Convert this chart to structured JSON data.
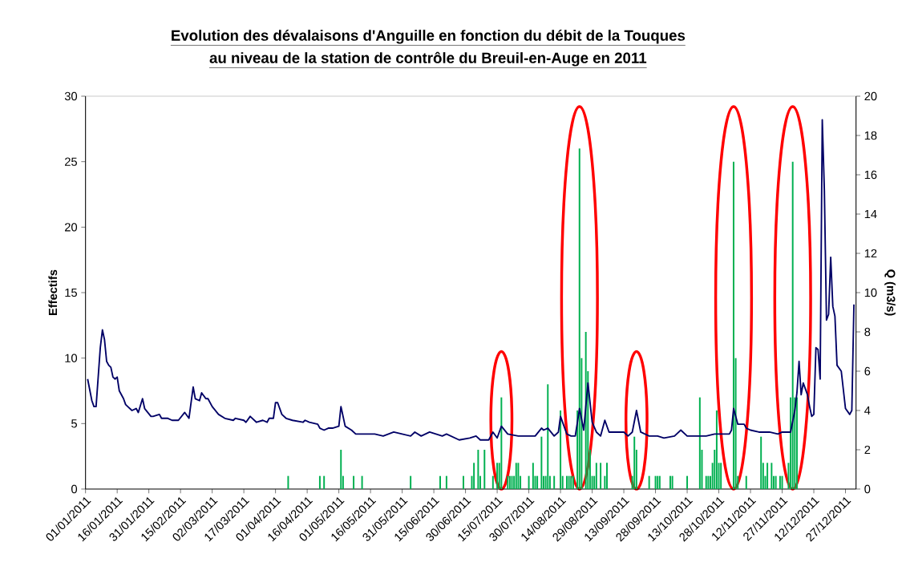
{
  "chart_data": {
    "type": "bar",
    "title": "Evolution des dévalaisons d'Anguille en fonction du débit de la Touques",
    "subtitle": "au niveau de la station de contrôle du Breuil-en-Auge en 2011",
    "ylabel": "Effectifs",
    "y2label": "Q (m3/s)",
    "xlim": [
      "2011-01-01",
      "2012-01-01"
    ],
    "xticks": [
      {
        "value": "2011-01-01",
        "label": "01/01/2011"
      },
      {
        "value": "2011-01-16",
        "label": "16/01/2011"
      },
      {
        "value": "2011-01-31",
        "label": "31/01/2011"
      },
      {
        "value": "2011-02-15",
        "label": "15/02/2011"
      },
      {
        "value": "2011-03-02",
        "label": "02/03/2011"
      },
      {
        "value": "2011-03-17",
        "label": "17/03/2011"
      },
      {
        "value": "2011-04-01",
        "label": "01/04/2011"
      },
      {
        "value": "2011-04-16",
        "label": "16/04/2011"
      },
      {
        "value": "2011-05-01",
        "label": "01/05/2011"
      },
      {
        "value": "2011-05-16",
        "label": "16/05/2011"
      },
      {
        "value": "2011-05-31",
        "label": "31/05/2011"
      },
      {
        "value": "2011-06-15",
        "label": "15/06/2011"
      },
      {
        "value": "2011-06-30",
        "label": "30/06/2011"
      },
      {
        "value": "2011-07-15",
        "label": "15/07/2011"
      },
      {
        "value": "2011-07-30",
        "label": "30/07/2011"
      },
      {
        "value": "2011-08-14",
        "label": "14/08/2011"
      },
      {
        "value": "2011-08-29",
        "label": "29/08/2011"
      },
      {
        "value": "2011-09-13",
        "label": "13/09/2011"
      },
      {
        "value": "2011-09-28",
        "label": "28/09/2011"
      },
      {
        "value": "2011-10-13",
        "label": "13/10/2011"
      },
      {
        "value": "2011-10-28",
        "label": "28/10/2011"
      },
      {
        "value": "2011-11-12",
        "label": "12/11/2011"
      },
      {
        "value": "2011-11-27",
        "label": "27/11/2011"
      },
      {
        "value": "2011-12-12",
        "label": "12/12/2011"
      },
      {
        "value": "2011-12-27",
        "label": "27/12/2011"
      }
    ],
    "ylim": [
      0,
      30
    ],
    "yticks": [
      0,
      5,
      10,
      15,
      20,
      25,
      30
    ],
    "y2lim": [
      0,
      20
    ],
    "y2ticks": [
      0,
      2,
      4,
      6,
      8,
      10,
      12,
      14,
      16,
      18,
      20
    ],
    "series": [
      {
        "color": "#00b050",
        "x": [
          "2011-04-07",
          "2011-04-22",
          "2011-04-24",
          "2011-05-02",
          "2011-05-03",
          "2011-05-08",
          "2011-05-12",
          "2011-06-04",
          "2011-06-18",
          "2011-06-21",
          "2011-06-29",
          "2011-07-03",
          "2011-07-04",
          "2011-07-06",
          "2011-07-07",
          "2011-07-09",
          "2011-07-13",
          "2011-07-15",
          "2011-07-16",
          "2011-07-17",
          "2011-07-20",
          "2011-07-21",
          "2011-07-22",
          "2011-07-23",
          "2011-07-24",
          "2011-07-25",
          "2011-07-26",
          "2011-07-30",
          "2011-08-01",
          "2011-08-02",
          "2011-08-03",
          "2011-08-05",
          "2011-08-06",
          "2011-08-07",
          "2011-08-08",
          "2011-08-09",
          "2011-08-11",
          "2011-08-14",
          "2011-08-15",
          "2011-08-17",
          "2011-08-18",
          "2011-08-19",
          "2011-08-20",
          "2011-08-22",
          "2011-08-23",
          "2011-08-24",
          "2011-08-26",
          "2011-08-27",
          "2011-08-28",
          "2011-08-29",
          "2011-08-30",
          "2011-08-31",
          "2011-09-02",
          "2011-09-04",
          "2011-09-05",
          "2011-09-17",
          "2011-09-18",
          "2011-09-19",
          "2011-09-25",
          "2011-09-28",
          "2011-09-29",
          "2011-09-30",
          "2011-10-05",
          "2011-10-06",
          "2011-10-13",
          "2011-10-19",
          "2011-10-20",
          "2011-10-22",
          "2011-10-23",
          "2011-10-24",
          "2011-10-25",
          "2011-10-26",
          "2011-10-27",
          "2011-10-28",
          "2011-10-29",
          "2011-11-04",
          "2011-11-05",
          "2011-11-06",
          "2011-11-10",
          "2011-11-17",
          "2011-11-18",
          "2011-11-19",
          "2011-11-20",
          "2011-11-22",
          "2011-11-23",
          "2011-11-24",
          "2011-11-26",
          "2011-11-27",
          "2011-11-30",
          "2011-12-01",
          "2011-12-02",
          "2011-12-03",
          "2011-12-04"
        ],
        "values": [
          1,
          1,
          1,
          3,
          1,
          1,
          1,
          1,
          1,
          1,
          1,
          1,
          2,
          3,
          1,
          3,
          1,
          2,
          2,
          7,
          1,
          1,
          1,
          1,
          2,
          2,
          1,
          1,
          2,
          1,
          1,
          4,
          1,
          1,
          8,
          1,
          1,
          6,
          1,
          1,
          1,
          1,
          1,
          6,
          26,
          10,
          12,
          9,
          3,
          1,
          1,
          2,
          2,
          1,
          2,
          1,
          4,
          3,
          1,
          1,
          1,
          1,
          1,
          1,
          1,
          7,
          3,
          1,
          1,
          1,
          2,
          3,
          6,
          2,
          2,
          25,
          10,
          1,
          1,
          4,
          2,
          1,
          2,
          2,
          1,
          1,
          1,
          1,
          2,
          7,
          25,
          7,
          7
        ]
      },
      {
        "type": "line",
        "axis": "y2",
        "color": "#000066",
        "x": [
          "2011-01-02",
          "2011-01-04",
          "2011-01-05",
          "2011-01-06",
          "2011-01-08",
          "2011-01-09",
          "2011-01-10",
          "2011-01-11",
          "2011-01-12",
          "2011-01-13",
          "2011-01-14",
          "2011-01-15",
          "2011-01-16",
          "2011-01-17",
          "2011-01-19",
          "2011-01-20",
          "2011-01-21",
          "2011-01-23",
          "2011-01-25",
          "2011-01-26",
          "2011-01-28",
          "2011-01-29",
          "2011-02-01",
          "2011-02-02",
          "2011-02-05",
          "2011-02-06",
          "2011-02-09",
          "2011-02-11",
          "2011-02-14",
          "2011-02-17",
          "2011-02-19",
          "2011-02-21",
          "2011-02-22",
          "2011-02-24",
          "2011-02-25",
          "2011-02-27",
          "2011-02-28",
          "2011-03-02",
          "2011-03-05",
          "2011-03-08",
          "2011-03-12",
          "2011-03-13",
          "2011-03-17",
          "2011-03-18",
          "2011-03-20",
          "2011-03-23",
          "2011-03-26",
          "2011-03-28",
          "2011-03-29",
          "2011-03-31",
          "2011-04-01",
          "2011-04-02",
          "2011-04-04",
          "2011-04-06",
          "2011-04-09",
          "2011-04-14",
          "2011-04-15",
          "2011-04-17",
          "2011-04-21",
          "2011-04-22",
          "2011-04-24",
          "2011-04-26",
          "2011-04-28",
          "2011-05-01",
          "2011-05-02",
          "2011-05-04",
          "2011-05-07",
          "2011-05-09",
          "2011-05-13",
          "2011-05-18",
          "2011-05-22",
          "2011-05-27",
          "2011-05-31",
          "2011-06-04",
          "2011-06-06",
          "2011-06-09",
          "2011-06-13",
          "2011-06-16",
          "2011-06-19",
          "2011-06-21",
          "2011-06-27",
          "2011-07-02",
          "2011-07-05",
          "2011-07-07",
          "2011-07-11",
          "2011-07-13",
          "2011-07-15",
          "2011-07-17",
          "2011-07-20",
          "2011-07-25",
          "2011-07-29",
          "2011-08-02",
          "2011-08-05",
          "2011-08-06",
          "2011-08-08",
          "2011-08-11",
          "2011-08-13",
          "2011-08-14",
          "2011-08-17",
          "2011-08-19",
          "2011-08-21",
          "2011-08-23",
          "2011-08-25",
          "2011-08-27",
          "2011-08-29",
          "2011-08-31",
          "2011-09-02",
          "2011-09-04",
          "2011-09-06",
          "2011-09-09",
          "2011-09-13",
          "2011-09-15",
          "2011-09-17",
          "2011-09-19",
          "2011-09-21",
          "2011-09-25",
          "2011-09-29",
          "2011-10-02",
          "2011-10-07",
          "2011-10-10",
          "2011-10-13",
          "2011-10-18",
          "2011-10-22",
          "2011-10-26",
          "2011-11-02",
          "2011-11-03",
          "2011-11-04",
          "2011-11-06",
          "2011-11-09",
          "2011-11-10",
          "2011-11-12",
          "2011-11-16",
          "2011-11-21",
          "2011-11-25",
          "2011-11-27",
          "2011-12-01",
          "2011-12-03",
          "2011-12-04",
          "2011-12-05",
          "2011-12-06",
          "2011-12-07",
          "2011-12-09",
          "2011-12-10",
          "2011-12-11",
          "2011-12-12",
          "2011-12-13",
          "2011-12-14",
          "2011-12-15",
          "2011-12-16",
          "2011-12-17",
          "2011-12-18",
          "2011-12-19",
          "2011-12-20",
          "2011-12-21",
          "2011-12-22",
          "2011-12-23",
          "2011-12-25",
          "2011-12-27",
          "2011-12-29",
          "2011-12-30",
          "2011-12-31"
        ],
        "values": [
          5.6,
          4.5,
          4.2,
          4.2,
          7.2,
          8.1,
          7.6,
          6.5,
          6.3,
          6.2,
          5.7,
          5.6,
          5.7,
          5.0,
          4.6,
          4.3,
          4.2,
          4.0,
          4.1,
          3.9,
          4.6,
          4.1,
          3.7,
          3.7,
          3.8,
          3.6,
          3.6,
          3.5,
          3.5,
          3.9,
          3.6,
          5.2,
          4.6,
          4.5,
          4.9,
          4.6,
          4.6,
          4.2,
          3.8,
          3.6,
          3.5,
          3.6,
          3.5,
          3.4,
          3.7,
          3.4,
          3.5,
          3.4,
          3.6,
          3.6,
          4.4,
          4.4,
          3.8,
          3.6,
          3.5,
          3.4,
          3.5,
          3.4,
          3.3,
          3.1,
          3.0,
          3.1,
          3.1,
          3.2,
          4.2,
          3.2,
          3.0,
          2.8,
          2.8,
          2.8,
          2.7,
          2.9,
          2.8,
          2.7,
          2.9,
          2.7,
          2.9,
          2.8,
          2.7,
          2.8,
          2.5,
          2.6,
          2.7,
          2.5,
          2.5,
          2.9,
          2.6,
          3.2,
          2.8,
          2.7,
          2.7,
          2.7,
          3.1,
          3.0,
          3.1,
          2.7,
          2.9,
          3.7,
          2.8,
          2.7,
          2.7,
          4.1,
          3.0,
          5.4,
          3.4,
          2.9,
          2.7,
          3.5,
          2.9,
          2.9,
          2.9,
          2.7,
          2.9,
          4.0,
          2.9,
          2.7,
          2.7,
          2.6,
          2.7,
          3.0,
          2.7,
          2.7,
          2.7,
          2.8,
          2.8,
          3.0,
          4.1,
          3.3,
          3.3,
          3.1,
          3.0,
          2.9,
          2.9,
          2.8,
          2.9,
          2.9,
          4.0,
          4.9,
          6.5,
          4.8,
          5.4,
          4.8,
          4.2,
          3.7,
          3.8,
          7.2,
          7.1,
          5.6,
          18.8,
          15.2,
          8.6,
          8.9,
          11.8,
          9.3,
          8.8,
          6.3,
          6.0,
          4.1,
          3.8,
          4.0,
          9.4
        ]
      }
    ]
  }
}
